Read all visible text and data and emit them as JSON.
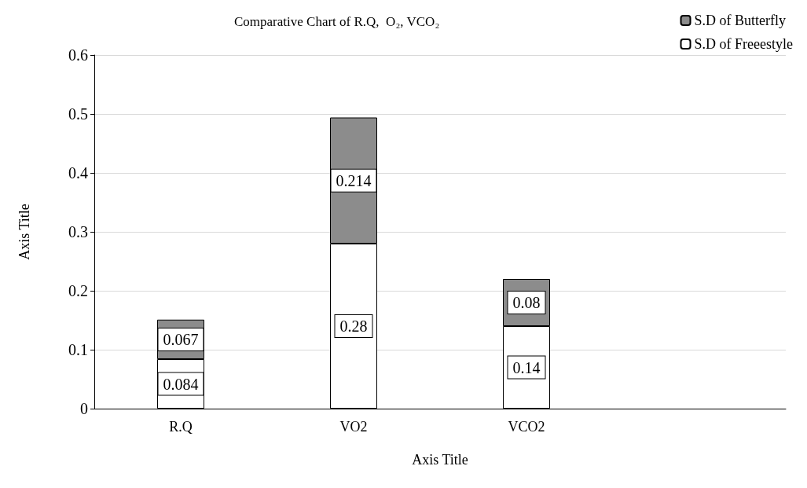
{
  "chart_data": {
    "type": "bar",
    "title": "Comparative Chart of R.Q,  O₂, VCO₂",
    "xlabel": "Axis Title",
    "ylabel": "Axis Title",
    "categories": [
      "R.Q",
      "VO2",
      "VCO2",
      null
    ],
    "series": [
      {
        "name": "S.D of Freeestyle",
        "color": "#ffffff",
        "values": [
          0.084,
          0.28,
          0.14,
          null
        ]
      },
      {
        "name": "S.D of Butterfly",
        "color": "#8c8c8c",
        "values": [
          0.067,
          0.214,
          0.08,
          null
        ]
      }
    ],
    "stacked": true,
    "data_labels": true,
    "ylim": [
      0,
      0.6
    ],
    "yticks": [
      0,
      0.1,
      0.2,
      0.3,
      0.4,
      0.5,
      0.6
    ],
    "grid": "y",
    "legend": "top right"
  }
}
